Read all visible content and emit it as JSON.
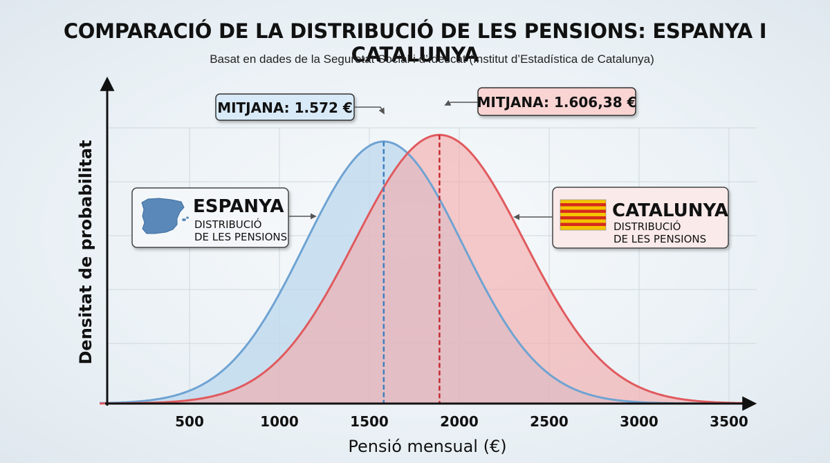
{
  "title": "COMPARACIÓ DE LA DISTRIBUCIÓ DE LES PENSIONS: ESPANYA I CATALUNYA",
  "subtitle": "Basat en dades de la Seguretat Social i d’Idescat (Institut d’Estadística de Catalunya)",
  "colors": {
    "spain_line": "#6fa3d2",
    "spain_fill": "#bcd8ee",
    "catalonia_line": "#e05a5e",
    "catalonia_fill": "#f3aaa9",
    "spain_box_bg": "#d8eaf7",
    "catalonia_box_bg": "#f9d4d3",
    "grid": "#cfd8df",
    "axis": "#111111"
  },
  "legend": {
    "spain": {
      "name": "ESPANYA",
      "line1": "DISTRIBUCIÓ",
      "line2": "DE LES PENSIONS",
      "icon": "spain-map-icon"
    },
    "catalonia": {
      "name": "CATALUNYA",
      "line1": "DISTRIBUCIÓ",
      "line2": "DE LES PENSIONS",
      "icon": "catalan-flag-icon"
    }
  },
  "mean_labels": {
    "spain": "MITJANA: 1.572 €",
    "catalonia": "MITJANA: 1.606,38 €"
  },
  "chart_data": {
    "type": "area",
    "xlabel": "Pensió mensual (€)",
    "ylabel": "Densitat de probabilitat",
    "xlim": [
      0,
      3600
    ],
    "x_ticks": [
      500,
      1000,
      1500,
      2000,
      2500,
      3000,
      3500
    ],
    "grid": true,
    "series": [
      {
        "name": "ESPANYA",
        "mean": 1572,
        "peak_x": 1580,
        "sd": 440,
        "peak_density": 0.79,
        "mean_line_x": 1580
      },
      {
        "name": "CATALUNYA",
        "mean": 1606.38,
        "peak_x": 1890,
        "sd": 470,
        "peak_density": 0.81,
        "mean_line_x": 1890
      }
    ]
  }
}
